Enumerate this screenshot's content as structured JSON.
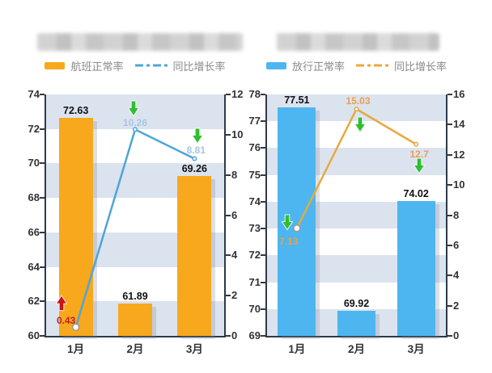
{
  "charts": [
    {
      "name": "flight-punctuality-chart",
      "title_redacted": true,
      "legend": [
        {
          "label": "航班正常率",
          "swatch": "bar",
          "color": "#F8A81C"
        },
        {
          "label": "同比增长率",
          "swatch": "line",
          "color": "#4FA5D6"
        }
      ],
      "chart_data": {
        "type": "bar+line",
        "categories": [
          "1月",
          "2月",
          "3月"
        ],
        "series": [
          {
            "name": "航班正常率",
            "type": "bar",
            "axis": "left",
            "values": [
              72.63,
              61.89,
              69.26
            ],
            "labels": [
              "72.63",
              "61.89",
              "69.26"
            ],
            "color": "#F8A81C"
          },
          {
            "name": "同比增长率",
            "type": "line",
            "axis": "right",
            "values": [
              0.43,
              10.26,
              8.81
            ],
            "labels": [
              "0.43",
              "10.26",
              "8.81"
            ],
            "color": "#4FA5D6",
            "label_colors": [
              "#C32222",
              "#A7C5E4",
              "#A7C5E4"
            ]
          }
        ],
        "left_axis": {
          "min": 60,
          "max": 74,
          "step": 2,
          "ticks": [
            "74",
            "72",
            "70",
            "68",
            "66",
            "64",
            "62",
            "60"
          ]
        },
        "right_axis": {
          "min": 0,
          "max": 12,
          "step": 2,
          "ticks": [
            "12",
            "10",
            "8",
            "6",
            "4",
            "2",
            "0"
          ]
        },
        "band_colors": [
          "#DBE3EF",
          "#FFFFFF"
        ],
        "grid": "alternating-bands",
        "legend_position": "top",
        "annotations": [
          {
            "category": "1月",
            "arrow": "up",
            "color": "#CC1414"
          },
          {
            "category": "2月",
            "arrow": "down",
            "color": "#2FBE2F"
          },
          {
            "category": "3月",
            "arrow": "down",
            "color": "#2FBE2F"
          }
        ]
      }
    },
    {
      "name": "release-punctuality-chart",
      "title_redacted": true,
      "legend": [
        {
          "label": "放行正常率",
          "swatch": "bar",
          "color": "#4DB6F0"
        },
        {
          "label": "同比增长率",
          "swatch": "line",
          "color": "#E8A93C"
        }
      ],
      "chart_data": {
        "type": "bar+line",
        "categories": [
          "1月",
          "2月",
          "3月"
        ],
        "series": [
          {
            "name": "放行正常率",
            "type": "bar",
            "axis": "left",
            "values": [
              77.51,
              69.92,
              74.02
            ],
            "labels": [
              "77.51",
              "69.92",
              "74.02"
            ],
            "color": "#4DB6F0"
          },
          {
            "name": "同比增长率",
            "type": "line",
            "axis": "right",
            "values": [
              7.13,
              15.03,
              12.7
            ],
            "labels": [
              "7.13",
              "15.03",
              "12.7"
            ],
            "color": "#E8A93C",
            "label_colors": [
              "#ED9D50",
              "#ED9D50",
              "#ED9D50"
            ]
          }
        ],
        "left_axis": {
          "min": 69,
          "max": 78,
          "step": 1,
          "ticks": [
            "78",
            "77",
            "76",
            "75",
            "74",
            "73",
            "72",
            "71",
            "70",
            "69"
          ]
        },
        "right_axis": {
          "min": 0,
          "max": 16,
          "step": 2,
          "ticks": [
            "16",
            "14",
            "12",
            "10",
            "8",
            "6",
            "4",
            "2",
            "0"
          ]
        },
        "band_colors": [
          "#DBE3EF",
          "#FFFFFF"
        ],
        "grid": "alternating-bands",
        "legend_position": "top",
        "annotations": [
          {
            "category": "1月",
            "arrow": "down",
            "color": "#2FBE2F"
          },
          {
            "category": "2月",
            "arrow": "down",
            "color": "#2FBE2F"
          },
          {
            "category": "3月",
            "arrow": "down",
            "color": "#2FBE2F"
          }
        ]
      }
    }
  ]
}
